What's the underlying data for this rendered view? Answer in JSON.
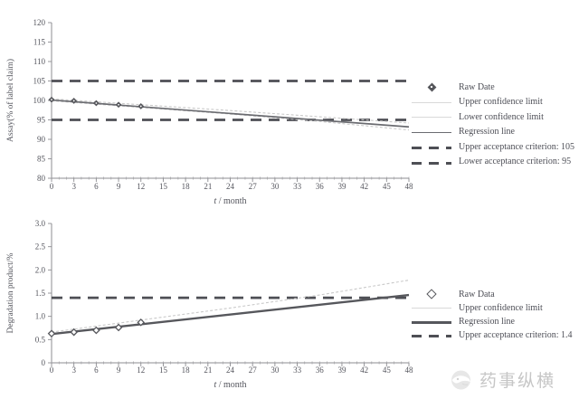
{
  "figure": {
    "background": "#ffffff",
    "text_color": "#4a4b52",
    "axis_color": "#8d8d92",
    "criterion_color": "#4e4f55",
    "regression_color": "#6b6c71",
    "bold_regression_color": "#56575c",
    "confidence_color": "#c9c9c9",
    "watermark_color": "#c6c6c6"
  },
  "watermark": {
    "text": "药事纵横",
    "logo": "whale-logo-icon"
  },
  "chart_data": [
    {
      "name": "assay-stability-plot",
      "type": "line",
      "title": "",
      "xlabel": "t / month",
      "ylabel": "Assay(% of label claim)",
      "xlim": [
        0,
        48
      ],
      "xtick_step": 3,
      "minor_xtick_step": 1,
      "ylim": [
        80,
        120
      ],
      "ytick_step": 5,
      "ytick_format": "integer",
      "grid": false,
      "series": [
        {
          "name": "Raw Date",
          "style": "markers",
          "marker": "filled-diamond",
          "points": [
            [
              0,
              100.2
            ],
            [
              3,
              99.9
            ],
            [
              6,
              99.3
            ],
            [
              9,
              98.9
            ],
            [
              12,
              98.5
            ]
          ]
        },
        {
          "name": "Upper confidence limit",
          "style": "faint-line",
          "points": [
            [
              0,
              100.4
            ],
            [
              12,
              98.9
            ],
            [
              24,
              97.4
            ],
            [
              36,
              95.8
            ],
            [
              48,
              94.2
            ]
          ]
        },
        {
          "name": "Lower confidence limit",
          "style": "faint-line",
          "points": [
            [
              0,
              99.9
            ],
            [
              12,
              98.2
            ],
            [
              24,
              96.5
            ],
            [
              36,
              94.6
            ],
            [
              48,
              92.4
            ]
          ]
        },
        {
          "name": "Regression line",
          "style": "regression",
          "points": [
            [
              0,
              100.1
            ],
            [
              48,
              93.2
            ]
          ]
        }
      ],
      "criteria": [
        {
          "name": "Upper acceptance criterion",
          "value": 105
        },
        {
          "name": "Lower acceptance criterion",
          "value": 95
        }
      ],
      "legend": {
        "position": "right",
        "items": [
          {
            "label": "Raw Date",
            "marker": "diamond-filled"
          },
          {
            "label": "Upper confidence limit",
            "marker": "faint-line"
          },
          {
            "label": "Lower confidence limit",
            "marker": "faint-line"
          },
          {
            "label": "Regression line",
            "marker": "solid-line"
          },
          {
            "label": "Upper acceptance criterion: 105",
            "marker": "bold-dash"
          },
          {
            "label": "Lower acceptance criterion: 95",
            "marker": "bold-dash"
          }
        ]
      }
    },
    {
      "name": "degradation-product-plot",
      "type": "line",
      "title": "",
      "xlabel": "t / month",
      "ylabel": "Degradation product/%",
      "xlim": [
        0,
        48
      ],
      "xtick_step": 3,
      "minor_xtick_step": 1,
      "ylim": [
        0,
        3
      ],
      "ytick_step": 0.5,
      "ytick_format": "one-decimal",
      "grid": false,
      "series": [
        {
          "name": "Raw Data",
          "style": "markers",
          "marker": "open-diamond",
          "points": [
            [
              0,
              0.63
            ],
            [
              3,
              0.66
            ],
            [
              6,
              0.7
            ],
            [
              9,
              0.76
            ],
            [
              12,
              0.87
            ]
          ]
        },
        {
          "name": "Upper confidence limit",
          "style": "faint-line",
          "points": [
            [
              0,
              0.66
            ],
            [
              12,
              0.92
            ],
            [
              24,
              1.18
            ],
            [
              36,
              1.46
            ],
            [
              48,
              1.78
            ]
          ]
        },
        {
          "name": "Regression line",
          "style": "bold-regression",
          "points": [
            [
              0,
              0.62
            ],
            [
              48,
              1.46
            ]
          ]
        }
      ],
      "criteria": [
        {
          "name": "Upper acceptance criterion",
          "value": 1.4
        }
      ],
      "legend": {
        "position": "right",
        "items": [
          {
            "label": "Raw Data",
            "marker": "diamond-open"
          },
          {
            "label": "Upper confidence limit",
            "marker": "faint-line"
          },
          {
            "label": "Regression line",
            "marker": "bold-line"
          },
          {
            "label": "Upper acceptance criterion: 1.4",
            "marker": "bold-dash"
          }
        ]
      }
    }
  ]
}
